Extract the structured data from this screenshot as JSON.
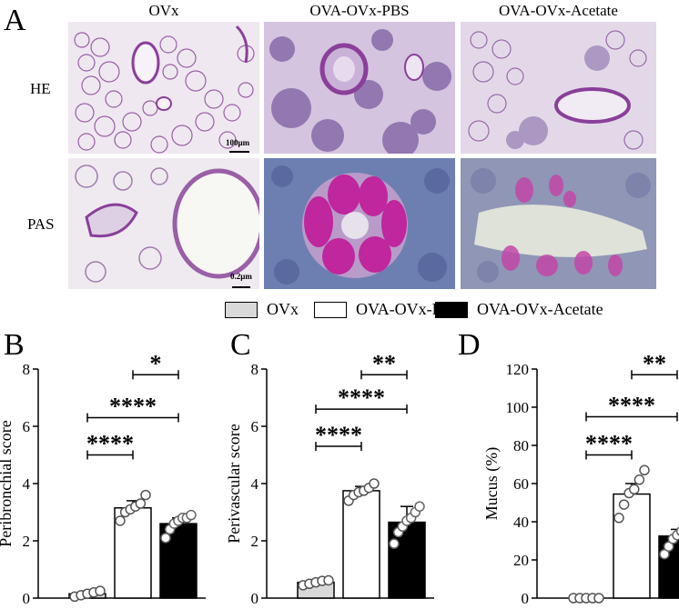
{
  "figure": {
    "panel_a_letter": "A",
    "columns": [
      "OVx",
      "OVA-OVx-PBS",
      "OVA-OVx-Acetate"
    ],
    "rows": [
      "HE",
      "PAS"
    ],
    "scalebar_he": "100μm",
    "scalebar_pas": "0.2μm",
    "colors": {
      "he_background": "#e7dce9",
      "he_stain": "#8a4a9a",
      "pas_background": "#eef0ea",
      "pas_magenta": "#c0269d",
      "pas_blue": "#6b7fb0",
      "ovx_fill": "#d9d9d9",
      "pbs_fill": "#ffffff",
      "acetate_fill": "#000000"
    }
  },
  "legend": {
    "items": [
      {
        "label": "OVx",
        "color": "#d9d9d9"
      },
      {
        "label": "OVA-OVx-PBS",
        "color": "#ffffff"
      },
      {
        "label": "OVA-OVx-Acetate",
        "color": "#000000"
      }
    ]
  },
  "chart_data": [
    {
      "panel": "B",
      "type": "bar",
      "ylabel": "Peribronchial score",
      "ylim": [
        0,
        8
      ],
      "yticks": [
        "0",
        "2",
        "4",
        "6",
        "8"
      ],
      "categories": [
        "OVx",
        "OVA-OVx-PBS",
        "OVA-OVx-Acetate"
      ],
      "values": [
        0.15,
        3.15,
        2.6
      ],
      "errors": [
        0.1,
        0.25,
        0.2
      ],
      "points": [
        [
          0.05,
          0.1,
          0.15,
          0.2,
          0.25
        ],
        [
          2.7,
          3.0,
          3.1,
          3.2,
          3.3,
          3.6
        ],
        [
          2.1,
          2.4,
          2.6,
          2.7,
          2.8,
          2.8,
          2.9
        ]
      ],
      "significance": [
        {
          "from": 1,
          "to": 2,
          "label": "*",
          "y": 7.8
        },
        {
          "from": 0,
          "to": 2,
          "label": "****",
          "y": 6.3
        },
        {
          "from": 0,
          "to": 1,
          "label": "****",
          "y": 5.0
        }
      ]
    },
    {
      "panel": "C",
      "type": "bar",
      "ylabel": "Perivascular score",
      "ylim": [
        0,
        8
      ],
      "yticks": [
        "0",
        "2",
        "4",
        "6",
        "8"
      ],
      "categories": [
        "OVx",
        "OVA-OVx-PBS",
        "OVA-OVx-Acetate"
      ],
      "values": [
        0.55,
        3.75,
        2.65
      ],
      "errors": [
        0.08,
        0.15,
        0.55
      ],
      "points": [
        [
          0.45,
          0.5,
          0.55,
          0.6,
          0.62
        ],
        [
          3.4,
          3.6,
          3.7,
          3.75,
          3.85,
          4.0
        ],
        [
          1.9,
          2.3,
          2.5,
          2.7,
          2.8,
          3.0,
          3.2
        ]
      ],
      "significance": [
        {
          "from": 1,
          "to": 2,
          "label": "**",
          "y": 7.8
        },
        {
          "from": 0,
          "to": 2,
          "label": "****",
          "y": 6.6
        },
        {
          "from": 0,
          "to": 1,
          "label": "****",
          "y": 5.3
        }
      ]
    },
    {
      "panel": "D",
      "type": "bar",
      "ylabel": "Mucus (%)",
      "ylim": [
        0,
        120
      ],
      "yticks": [
        "0",
        "20",
        "40",
        "60",
        "80",
        "100",
        "120"
      ],
      "categories": [
        "OVx",
        "OVA-OVx-PBS",
        "OVA-OVx-Acetate"
      ],
      "values": [
        0,
        54.5,
        32.5
      ],
      "errors": [
        0,
        5.5,
        3.5
      ],
      "points": [
        [
          0,
          0,
          0,
          0,
          0
        ],
        [
          42,
          49,
          55,
          57,
          62,
          67
        ],
        [
          23,
          27,
          31,
          33,
          35,
          37,
          41
        ]
      ],
      "significance": [
        {
          "from": 1,
          "to": 2,
          "label": "**",
          "y": 117
        },
        {
          "from": 0,
          "to": 2,
          "label": "****",
          "y": 95
        },
        {
          "from": 0,
          "to": 1,
          "label": "****",
          "y": 75
        }
      ]
    }
  ]
}
